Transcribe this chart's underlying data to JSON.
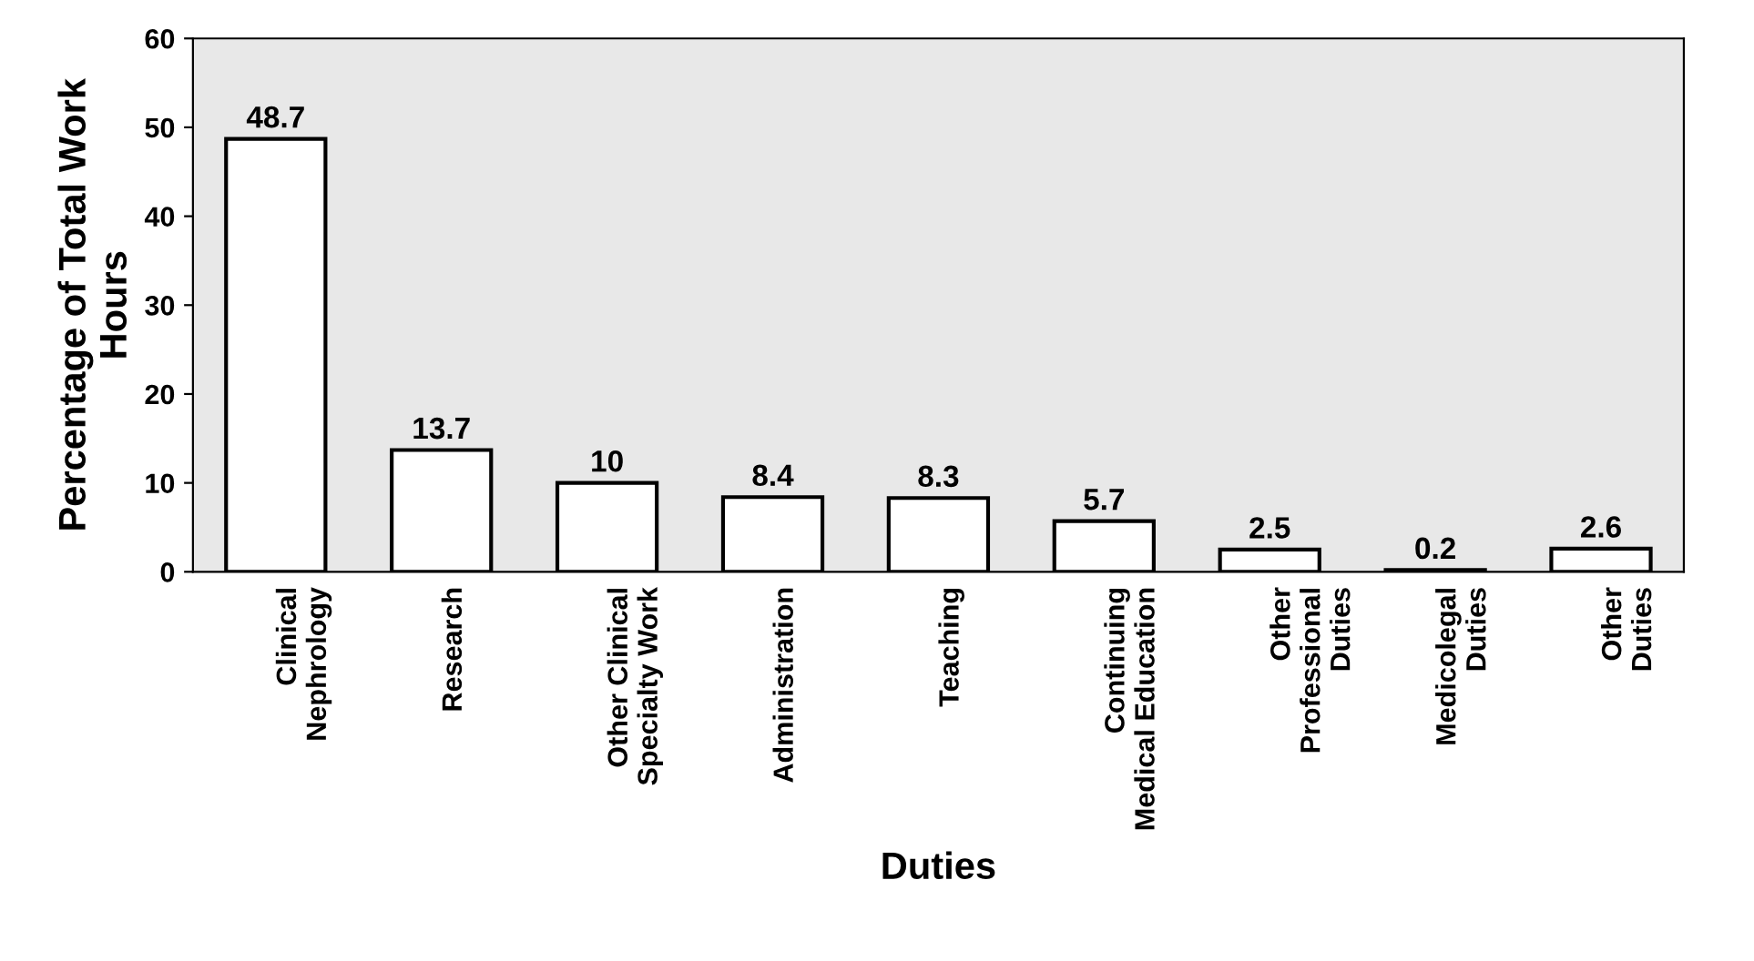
{
  "chart_data": {
    "type": "bar",
    "xlabel": "Duties",
    "ylabel": "Percentage of Total Work\nHours",
    "categories": [
      "Clinical\nNephrology",
      "Research",
      "Other Clinical\nSpecialty Work",
      "Administration",
      "Teaching",
      "Continuing\nMedical Education",
      "Other\nProfessional\nDuties",
      "Medicolegal\nDuties",
      "Other\nDuties"
    ],
    "values": [
      48.7,
      13.7,
      10,
      8.4,
      8.3,
      5.7,
      2.5,
      0.2,
      2.6
    ],
    "color": "#ffffff",
    "ylim": [
      0,
      60
    ],
    "yticks": [
      0,
      10,
      20,
      30,
      40,
      50,
      60
    ],
    "grid": false,
    "data_labels": true
  }
}
